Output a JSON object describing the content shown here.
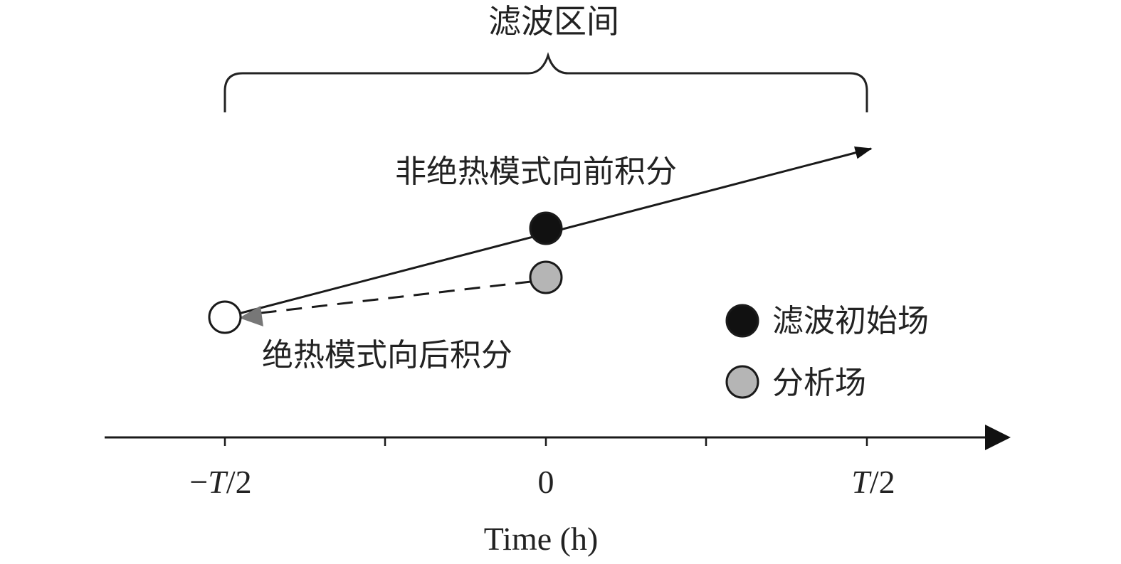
{
  "filter_interval_label": "滤波区间",
  "forward_integration_label": "非绝热模式向前积分",
  "backward_integration_label": "绝热模式向后积分",
  "legend": [
    {
      "label": "滤波初始场",
      "color": "#111111"
    },
    {
      "label": "分析场",
      "color": "#b5b5b5"
    }
  ],
  "axis": {
    "title": "Time (h)",
    "ticks": [
      {
        "italic": "",
        "prefix": "−",
        "var": "T",
        "suffix": "/2"
      },
      {
        "italic": "",
        "prefix": "",
        "var": "",
        "suffix": "0"
      },
      {
        "italic": "",
        "prefix": "",
        "var": "T",
        "suffix": "/2"
      }
    ]
  },
  "colors": {
    "filtered_initial_field": "#111111",
    "analysis_field": "#b5b5b5",
    "start_point": "#ffffff",
    "line": "#1a1a1a",
    "backward_arrowhead": "#777777"
  }
}
